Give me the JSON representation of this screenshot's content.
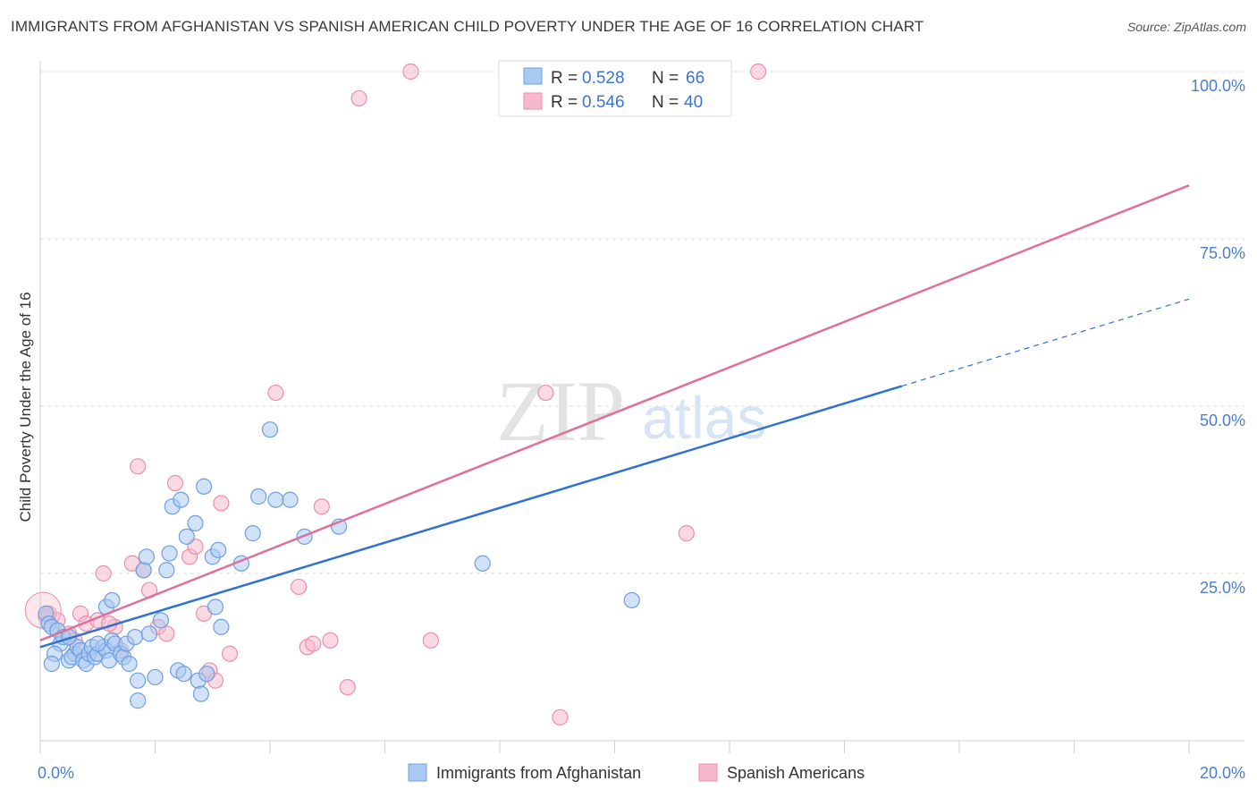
{
  "header": {
    "title": "IMMIGRANTS FROM AFGHANISTAN VS SPANISH AMERICAN CHILD POVERTY UNDER THE AGE OF 16 CORRELATION CHART",
    "source": "Source: ZipAtlas.com"
  },
  "watermark": {
    "zip": "ZIP",
    "atlas": "atlas"
  },
  "colors": {
    "blue_fill": "#a9c8f2",
    "blue_stroke": "#6f9fe0",
    "blue_line": "#2f72d1",
    "pink_fill": "#f6b9cc",
    "pink_stroke": "#ea8fac",
    "pink_line": "#e07099",
    "tick_color": "#4a7fd0",
    "grid": "#dcdcdc"
  },
  "chart_data": {
    "type": "scatter",
    "title": "IMMIGRANTS FROM AFGHANISTAN VS SPANISH AMERICAN CHILD POVERTY UNDER THE AGE OF 16 CORRELATION CHART",
    "xlabel": "",
    "ylabel": "Child Poverty Under the Age of 16",
    "xlim": [
      0,
      20
    ],
    "ylim": [
      0,
      100
    ],
    "x_tick_labels": [
      "0.0%",
      "20.0%"
    ],
    "y_ticks": [
      25,
      50,
      75,
      100
    ],
    "y_tick_labels": [
      "25.0%",
      "50.0%",
      "75.0%",
      "100.0%"
    ],
    "legend": [
      {
        "r_label": "R =",
        "r_value": "0.528",
        "n_label": "N =",
        "n_value": "66"
      },
      {
        "r_label": "R =",
        "r_value": "0.546",
        "n_label": "N =",
        "n_value": "40"
      }
    ],
    "series": [
      {
        "name": "Immigrants from Afghanistan",
        "color": "blue",
        "points": [
          [
            0.1,
            19
          ],
          [
            0.15,
            17.5
          ],
          [
            0.2,
            17
          ],
          [
            0.3,
            16.5
          ],
          [
            0.35,
            14.5
          ],
          [
            0.25,
            13
          ],
          [
            0.4,
            15.5
          ],
          [
            0.2,
            11.5
          ],
          [
            0.5,
            12
          ],
          [
            0.6,
            13
          ],
          [
            0.55,
            12.5
          ],
          [
            0.65,
            14
          ],
          [
            0.7,
            13.5
          ],
          [
            0.75,
            12
          ],
          [
            0.8,
            11.5
          ],
          [
            0.85,
            13
          ],
          [
            0.9,
            14
          ],
          [
            0.95,
            12.5
          ],
          [
            1.0,
            13
          ],
          [
            1.1,
            14
          ],
          [
            1.15,
            13.5
          ],
          [
            1.2,
            12
          ],
          [
            1.25,
            15
          ],
          [
            1.3,
            14.5
          ],
          [
            1.4,
            13
          ],
          [
            1.45,
            12.5
          ],
          [
            1.5,
            14.5
          ],
          [
            1.55,
            11.5
          ],
          [
            1.65,
            15.5
          ],
          [
            1.7,
            9
          ],
          [
            1.8,
            25.5
          ],
          [
            1.85,
            27.5
          ],
          [
            1.9,
            16
          ],
          [
            2.0,
            9.5
          ],
          [
            2.1,
            18
          ],
          [
            2.2,
            25.5
          ],
          [
            2.25,
            28
          ],
          [
            2.3,
            35
          ],
          [
            2.4,
            10.5
          ],
          [
            2.45,
            36
          ],
          [
            2.5,
            10
          ],
          [
            2.55,
            30.5
          ],
          [
            2.7,
            32.5
          ],
          [
            2.75,
            9
          ],
          [
            2.8,
            7
          ],
          [
            2.9,
            10
          ],
          [
            3.0,
            27.5
          ],
          [
            3.1,
            28.5
          ],
          [
            3.15,
            17
          ],
          [
            3.5,
            26.5
          ],
          [
            3.7,
            31
          ],
          [
            3.8,
            36.5
          ],
          [
            4.0,
            46.5
          ],
          [
            4.1,
            36
          ],
          [
            4.35,
            36
          ],
          [
            4.6,
            30.5
          ],
          [
            5.2,
            32
          ],
          [
            7.7,
            26.5
          ],
          [
            10.3,
            21
          ],
          [
            1.15,
            20
          ],
          [
            1.25,
            21
          ],
          [
            0.5,
            15.5
          ],
          [
            1.0,
            14.5
          ],
          [
            1.7,
            6
          ],
          [
            2.85,
            38
          ],
          [
            3.05,
            20
          ]
        ]
      },
      {
        "name": "Spanish Americans",
        "color": "pink",
        "points": [
          [
            0.1,
            18.5
          ],
          [
            0.3,
            18
          ],
          [
            0.5,
            16
          ],
          [
            0.7,
            19
          ],
          [
            0.8,
            17.5
          ],
          [
            1.0,
            18
          ],
          [
            1.1,
            25
          ],
          [
            1.3,
            17
          ],
          [
            1.4,
            13.5
          ],
          [
            1.6,
            26.5
          ],
          [
            1.7,
            41
          ],
          [
            1.8,
            25.5
          ],
          [
            1.9,
            22.5
          ],
          [
            2.05,
            17
          ],
          [
            2.2,
            16
          ],
          [
            2.35,
            38.5
          ],
          [
            2.6,
            27.5
          ],
          [
            2.7,
            29
          ],
          [
            2.85,
            19
          ],
          [
            2.95,
            10.5
          ],
          [
            3.05,
            9
          ],
          [
            3.15,
            35.5
          ],
          [
            3.3,
            13
          ],
          [
            4.1,
            52
          ],
          [
            4.5,
            23
          ],
          [
            4.65,
            14
          ],
          [
            4.75,
            14.5
          ],
          [
            4.9,
            35
          ],
          [
            5.05,
            15
          ],
          [
            5.35,
            8
          ],
          [
            5.55,
            96
          ],
          [
            6.45,
            100
          ],
          [
            6.8,
            15
          ],
          [
            8.8,
            52
          ],
          [
            9.05,
            3.5
          ],
          [
            11.25,
            31
          ],
          [
            12.5,
            100
          ],
          [
            0.15,
            19
          ],
          [
            1.2,
            17.5
          ],
          [
            0.6,
            15
          ]
        ]
      }
    ],
    "trend_lines": [
      {
        "series": "Immigrants from Afghanistan",
        "x1": 0,
        "y1": 14,
        "x2": 15,
        "y2": 53,
        "dashed_to_x": 20,
        "dashed_to_y": 66
      },
      {
        "series": "Spanish Americans",
        "x1": 0,
        "y1": 15,
        "x2": 20,
        "y2": 83
      }
    ],
    "legend_position": "top-center",
    "grid": true
  },
  "bottom_legend": {
    "items": [
      "Immigrants from Afghanistan",
      "Spanish Americans"
    ]
  }
}
